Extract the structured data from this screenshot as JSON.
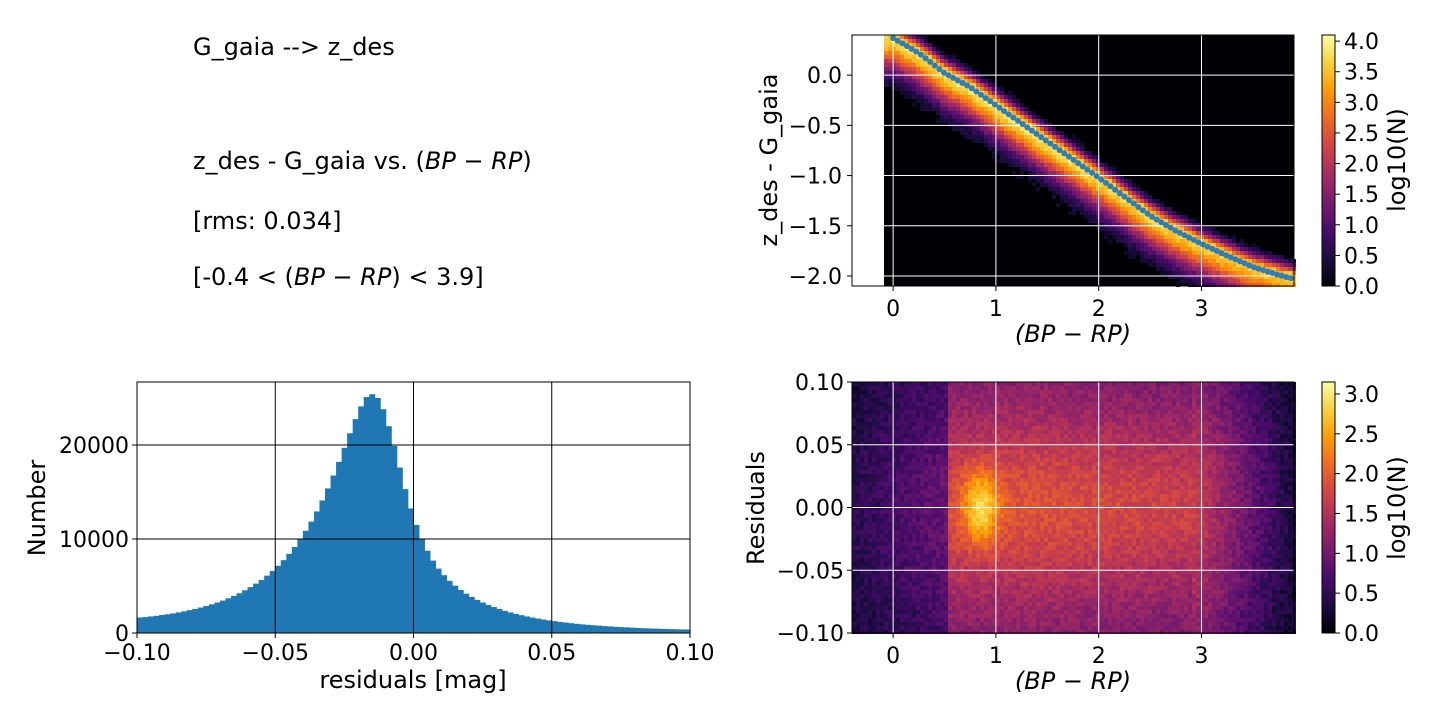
{
  "info_panel": {
    "title": "G_gaia --> z_des",
    "fit_prefix": "z_des - G_gaia vs. (",
    "color_math": "BP − RP",
    "rms_text": "[rms: 0.034]",
    "range_prefix": "[-0.4 < (",
    "range_suffix": ") < 3.9]",
    "close_paren": ")"
  },
  "colors": {
    "hist_bar": "#1f77b4",
    "trend_line": "#2c7fb8",
    "grid_dark": "#000000",
    "grid_light": "#ffffff",
    "inferno": [
      "#000004",
      "#1b0c41",
      "#4a0c6b",
      "#781c6d",
      "#a52c60",
      "#cf4446",
      "#ed6925",
      "#fb9b06",
      "#f7d13d",
      "#fcffa4"
    ]
  },
  "chart_data": [
    {
      "type": "heatmap",
      "name": "color-transform-hexbin",
      "xlabel": "(BP − RP)",
      "ylabel": "z_des - G_gaia",
      "xlim": [
        -0.4,
        3.9
      ],
      "ylim": [
        -2.1,
        0.4
      ],
      "xticks": [
        0,
        1,
        2,
        3
      ],
      "yticks": [
        0.0,
        -0.5,
        -1.0,
        -1.5,
        -2.0
      ],
      "ytick_labels": [
        "0.0",
        "−0.5",
        "−1.0",
        "−1.5",
        "−2.0"
      ],
      "grid": true,
      "colorbar": {
        "label": "log10(N)",
        "range": [
          0,
          4.1
        ],
        "ticks": [
          0.0,
          0.5,
          1.0,
          1.5,
          2.0,
          2.5,
          3.0,
          3.5,
          4.0
        ]
      },
      "fit_curve": {
        "x": [
          0.0,
          0.25,
          0.5,
          0.75,
          1.0,
          1.25,
          1.5,
          1.75,
          2.0,
          2.25,
          2.5,
          2.75,
          3.0,
          3.25,
          3.5,
          3.75,
          3.9
        ],
        "y": [
          0.37,
          0.22,
          0.02,
          -0.12,
          -0.3,
          -0.48,
          -0.66,
          -0.84,
          -1.02,
          -1.21,
          -1.4,
          -1.55,
          -1.68,
          -1.8,
          -1.91,
          -1.99,
          -2.03
        ]
      }
    },
    {
      "type": "bar",
      "name": "residuals-histogram",
      "xlabel": "residuals [mag]",
      "ylabel": "Number",
      "xlim": [
        -0.1,
        0.1
      ],
      "ylim": [
        0,
        26700
      ],
      "xticks": [
        -0.1,
        -0.05,
        0.0,
        0.05,
        0.1
      ],
      "xtick_labels": [
        "−0.10",
        "−0.05",
        "0.00",
        "0.05",
        "0.10"
      ],
      "yticks": [
        0,
        10000,
        20000
      ],
      "ytick_labels": [
        "0",
        "10000",
        "20000"
      ],
      "grid": true,
      "bin_width": 0.002,
      "bin_centers": [
        -0.099,
        -0.097,
        -0.095,
        -0.093,
        -0.091,
        -0.089,
        -0.087,
        -0.085,
        -0.083,
        -0.081,
        -0.079,
        -0.077,
        -0.075,
        -0.073,
        -0.071,
        -0.069,
        -0.067,
        -0.065,
        -0.063,
        -0.061,
        -0.059,
        -0.057,
        -0.055,
        -0.053,
        -0.051,
        -0.049,
        -0.047,
        -0.045,
        -0.043,
        -0.041,
        -0.039,
        -0.037,
        -0.035,
        -0.033,
        -0.031,
        -0.029,
        -0.027,
        -0.025,
        -0.023,
        -0.021,
        -0.019,
        -0.017,
        -0.015,
        -0.013,
        -0.011,
        -0.009,
        -0.007,
        -0.005,
        -0.003,
        -0.001,
        0.001,
        0.003,
        0.005,
        0.007,
        0.009,
        0.011,
        0.013,
        0.015,
        0.017,
        0.019,
        0.021,
        0.023,
        0.025,
        0.027,
        0.029,
        0.031,
        0.033,
        0.035,
        0.037,
        0.039,
        0.041,
        0.043,
        0.045,
        0.047,
        0.049,
        0.051,
        0.053,
        0.055,
        0.057,
        0.059,
        0.061,
        0.063,
        0.065,
        0.067,
        0.069,
        0.071,
        0.073,
        0.075,
        0.077,
        0.079,
        0.081,
        0.083,
        0.085,
        0.087,
        0.089,
        0.091,
        0.093,
        0.095,
        0.097,
        0.099
      ],
      "values": [
        1650,
        1690,
        1760,
        1830,
        1910,
        1990,
        2080,
        2190,
        2300,
        2430,
        2560,
        2710,
        2870,
        3050,
        3240,
        3450,
        3690,
        3950,
        4230,
        4540,
        4880,
        5250,
        5650,
        6100,
        6600,
        7150,
        7750,
        8420,
        9150,
        9970,
        10870,
        11850,
        12930,
        14100,
        15380,
        16750,
        18200,
        19700,
        21250,
        22750,
        24100,
        25100,
        25400,
        25000,
        23800,
        22000,
        19900,
        17600,
        15300,
        13250,
        11500,
        10000,
        8750,
        7700,
        6850,
        6150,
        5550,
        5030,
        4580,
        4180,
        3830,
        3520,
        3240,
        2990,
        2760,
        2550,
        2360,
        2190,
        2030,
        1890,
        1760,
        1640,
        1530,
        1430,
        1340,
        1260,
        1180,
        1110,
        1040,
        980,
        920,
        870,
        820,
        780,
        740,
        700,
        660,
        630,
        600,
        570,
        540,
        510,
        490,
        470,
        450,
        430,
        410,
        400,
        380,
        370
      ]
    },
    {
      "type": "heatmap",
      "name": "residuals-vs-color-hexbin",
      "xlabel": "(BP − RP)",
      "ylabel": "Residuals",
      "xlim": [
        -0.4,
        3.9
      ],
      "ylim": [
        -0.1,
        0.1
      ],
      "xticks": [
        0,
        1,
        2,
        3
      ],
      "yticks": [
        0.1,
        0.05,
        0.0,
        -0.05,
        -0.1
      ],
      "ytick_labels": [
        "0.10",
        "0.05",
        "0.00",
        "−0.05",
        "−0.10"
      ],
      "grid": true,
      "colorbar": {
        "label": "log10(N)",
        "range": [
          0,
          3.15
        ],
        "ticks": [
          0.0,
          0.5,
          1.0,
          1.5,
          2.0,
          2.5,
          3.0
        ]
      }
    }
  ]
}
